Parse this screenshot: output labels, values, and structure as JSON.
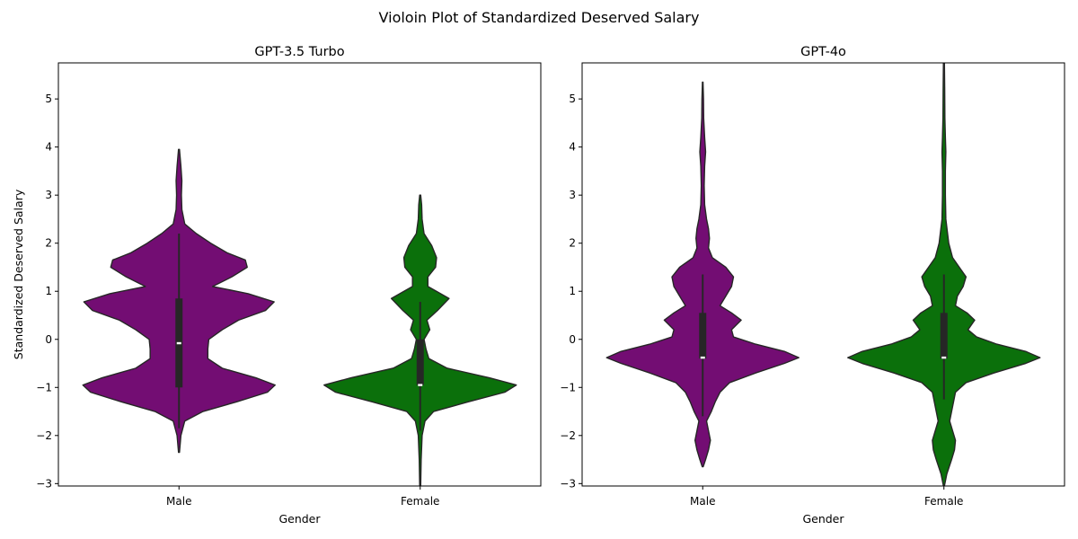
{
  "figure_title": "Violoin Plot of Standardized Deserved Salary",
  "colors": {
    "Male": "#730d73",
    "Female": "#0b700b",
    "outline": "#262626",
    "box": "#262626",
    "median": "#ffffff"
  },
  "chart_data": [
    {
      "type": "violin",
      "title": "GPT-3.5 Turbo",
      "xlabel": "Gender",
      "ylabel": "Standardized Deserved Salary",
      "categories": [
        "Male",
        "Female"
      ],
      "ylim": [
        -3.05,
        5.75
      ],
      "yticks": [
        -3,
        -2,
        -1,
        0,
        1,
        2,
        3,
        4,
        5
      ],
      "series": [
        {
          "name": "Male",
          "min": -2.35,
          "max": 3.95,
          "q1": -1.0,
          "median": -0.08,
          "q3": 0.85,
          "whisker_low": -1.85,
          "whisker_high": 2.2,
          "profile": [
            [
              -2.35,
              0.005
            ],
            [
              -2.0,
              0.02
            ],
            [
              -1.7,
              0.06
            ],
            [
              -1.5,
              0.25
            ],
            [
              -1.3,
              0.6
            ],
            [
              -1.1,
              0.92
            ],
            [
              -0.95,
              1.0
            ],
            [
              -0.8,
              0.8
            ],
            [
              -0.6,
              0.45
            ],
            [
              -0.4,
              0.3
            ],
            [
              -0.2,
              0.3
            ],
            [
              0.0,
              0.31
            ],
            [
              0.2,
              0.45
            ],
            [
              0.4,
              0.62
            ],
            [
              0.6,
              0.9
            ],
            [
              0.78,
              0.99
            ],
            [
              0.95,
              0.72
            ],
            [
              1.1,
              0.35
            ],
            [
              1.3,
              0.55
            ],
            [
              1.5,
              0.71
            ],
            [
              1.65,
              0.69
            ],
            [
              1.8,
              0.5
            ],
            [
              2.0,
              0.33
            ],
            [
              2.2,
              0.18
            ],
            [
              2.4,
              0.06
            ],
            [
              2.7,
              0.03
            ],
            [
              3.0,
              0.025
            ],
            [
              3.3,
              0.03
            ],
            [
              3.6,
              0.02
            ],
            [
              3.95,
              0.005
            ]
          ]
        },
        {
          "name": "Female",
          "min": -3.05,
          "max": 3.0,
          "q1": -0.95,
          "median": -0.95,
          "q3": 0.0,
          "whisker_low": -1.9,
          "whisker_high": 0.78,
          "profile": [
            [
              -3.05,
              0.005
            ],
            [
              -2.5,
              0.01
            ],
            [
              -2.0,
              0.02
            ],
            [
              -1.7,
              0.05
            ],
            [
              -1.5,
              0.14
            ],
            [
              -1.3,
              0.5
            ],
            [
              -1.1,
              0.88
            ],
            [
              -0.95,
              1.0
            ],
            [
              -0.8,
              0.72
            ],
            [
              -0.6,
              0.28
            ],
            [
              -0.4,
              0.09
            ],
            [
              -0.2,
              0.06
            ],
            [
              0.0,
              0.04
            ],
            [
              0.2,
              0.1
            ],
            [
              0.4,
              0.07
            ],
            [
              0.6,
              0.18
            ],
            [
              0.85,
              0.3
            ],
            [
              1.1,
              0.08
            ],
            [
              1.3,
              0.08
            ],
            [
              1.5,
              0.16
            ],
            [
              1.7,
              0.17
            ],
            [
              1.95,
              0.12
            ],
            [
              2.2,
              0.04
            ],
            [
              2.5,
              0.02
            ],
            [
              2.8,
              0.015
            ],
            [
              3.0,
              0.005
            ]
          ]
        }
      ]
    },
    {
      "type": "violin",
      "title": "GPT-4o",
      "xlabel": "Gender",
      "ylabel": "",
      "categories": [
        "Male",
        "Female"
      ],
      "ylim": [
        -3.05,
        5.75
      ],
      "yticks": [
        -3,
        -2,
        -1,
        0,
        1,
        2,
        3,
        4,
        5
      ],
      "series": [
        {
          "name": "Male",
          "min": -2.65,
          "max": 5.35,
          "q1": -0.4,
          "median": -0.38,
          "q3": 0.55,
          "whisker_low": -1.6,
          "whisker_high": 1.35,
          "profile": [
            [
              -2.65,
              0.005
            ],
            [
              -2.5,
              0.03
            ],
            [
              -2.3,
              0.06
            ],
            [
              -2.1,
              0.08
            ],
            [
              -1.9,
              0.06
            ],
            [
              -1.7,
              0.04
            ],
            [
              -1.5,
              0.09
            ],
            [
              -1.3,
              0.13
            ],
            [
              -1.1,
              0.18
            ],
            [
              -0.9,
              0.28
            ],
            [
              -0.7,
              0.55
            ],
            [
              -0.5,
              0.85
            ],
            [
              -0.38,
              1.0
            ],
            [
              -0.25,
              0.85
            ],
            [
              -0.1,
              0.55
            ],
            [
              0.05,
              0.32
            ],
            [
              0.2,
              0.3
            ],
            [
              0.4,
              0.4
            ],
            [
              0.55,
              0.3
            ],
            [
              0.7,
              0.18
            ],
            [
              0.9,
              0.24
            ],
            [
              1.1,
              0.3
            ],
            [
              1.3,
              0.32
            ],
            [
              1.5,
              0.24
            ],
            [
              1.7,
              0.1
            ],
            [
              1.9,
              0.06
            ],
            [
              2.1,
              0.07
            ],
            [
              2.3,
              0.06
            ],
            [
              2.5,
              0.04
            ],
            [
              2.8,
              0.02
            ],
            [
              3.2,
              0.015
            ],
            [
              3.6,
              0.02
            ],
            [
              3.9,
              0.03
            ],
            [
              4.2,
              0.02
            ],
            [
              4.6,
              0.01
            ],
            [
              5.0,
              0.008
            ],
            [
              5.35,
              0.003
            ]
          ]
        },
        {
          "name": "Female",
          "min": -3.05,
          "max": 5.75,
          "q1": -0.4,
          "median": -0.38,
          "q3": 0.55,
          "whisker_low": -1.25,
          "whisker_high": 1.35,
          "profile": [
            [
              -3.05,
              0.005
            ],
            [
              -2.8,
              0.03
            ],
            [
              -2.5,
              0.08
            ],
            [
              -2.3,
              0.11
            ],
            [
              -2.1,
              0.12
            ],
            [
              -1.9,
              0.09
            ],
            [
              -1.7,
              0.06
            ],
            [
              -1.5,
              0.08
            ],
            [
              -1.3,
              0.1
            ],
            [
              -1.1,
              0.12
            ],
            [
              -0.9,
              0.23
            ],
            [
              -0.7,
              0.52
            ],
            [
              -0.5,
              0.85
            ],
            [
              -0.38,
              1.0
            ],
            [
              -0.25,
              0.85
            ],
            [
              -0.1,
              0.55
            ],
            [
              0.05,
              0.34
            ],
            [
              0.2,
              0.25
            ],
            [
              0.4,
              0.32
            ],
            [
              0.55,
              0.24
            ],
            [
              0.7,
              0.12
            ],
            [
              0.9,
              0.14
            ],
            [
              1.1,
              0.2
            ],
            [
              1.3,
              0.23
            ],
            [
              1.5,
              0.16
            ],
            [
              1.7,
              0.09
            ],
            [
              2.0,
              0.05
            ],
            [
              2.5,
              0.02
            ],
            [
              3.0,
              0.015
            ],
            [
              3.5,
              0.015
            ],
            [
              3.9,
              0.02
            ],
            [
              4.2,
              0.015
            ],
            [
              4.6,
              0.01
            ],
            [
              5.2,
              0.008
            ],
            [
              5.75,
              0.005
            ]
          ]
        }
      ]
    }
  ]
}
